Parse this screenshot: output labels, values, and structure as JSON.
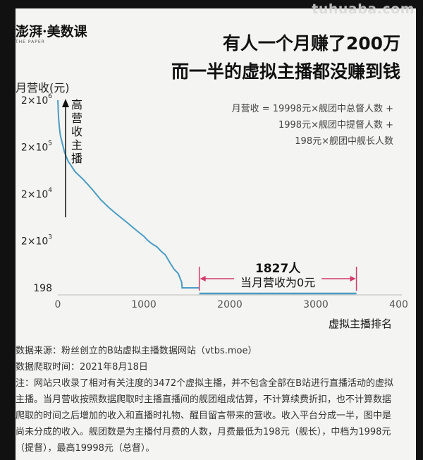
{
  "watermark": "tuhuaba.com",
  "brand": {
    "name": "澎湃·美数课",
    "sub": "THE PAPER"
  },
  "title": {
    "line1": "有人一个月赚了200万",
    "line2": "而一半的虚拟主播都没赚到钱"
  },
  "chart_data": {
    "type": "line",
    "ylabel": "月营收(元)",
    "xlabel": "虚拟主播排名",
    "y_scale": "log",
    "y_ticks": [
      {
        "value": 198,
        "label": "198"
      },
      {
        "value": 2000,
        "label": "2×10",
        "exp": "3"
      },
      {
        "value": 20000,
        "label": "2×10",
        "exp": "4"
      },
      {
        "value": 200000,
        "label": "2×10",
        "exp": "5"
      },
      {
        "value": 2000000,
        "label": "2×10",
        "exp": "6"
      }
    ],
    "x_ticks": [
      0,
      1000,
      2000,
      3000,
      4000
    ],
    "xlim": [
      0,
      4000
    ],
    "ylim": [
      150,
      2300000
    ],
    "line_color": "#4a9cc4",
    "series": [
      {
        "name": "",
        "points": [
          [
            1,
            2000000
          ],
          [
            5,
            1200000
          ],
          [
            10,
            800000
          ],
          [
            20,
            500000
          ],
          [
            30,
            350000
          ],
          [
            50,
            250000
          ],
          [
            80,
            150000
          ],
          [
            120,
            100000
          ],
          [
            200,
            60000
          ],
          [
            300,
            40000
          ],
          [
            400,
            25000
          ],
          [
            500,
            15000
          ],
          [
            600,
            10000
          ],
          [
            700,
            7000
          ],
          [
            800,
            5000
          ],
          [
            900,
            3500
          ],
          [
            1000,
            2500
          ],
          [
            1050,
            2000
          ],
          [
            1100,
            1700
          ],
          [
            1150,
            1500
          ],
          [
            1200,
            1200
          ],
          [
            1250,
            1000
          ],
          [
            1300,
            700
          ],
          [
            1350,
            500
          ],
          [
            1400,
            400
          ],
          [
            1440,
            260
          ],
          [
            1445,
            198
          ],
          [
            1645,
            198
          ]
        ]
      },
      {
        "name": "",
        "points": [
          [
            1645,
            150
          ],
          [
            3472,
            150
          ]
        ]
      }
    ],
    "annotations": {
      "high_revenue_arrow": "高营收主播",
      "formula": [
        "月营收 = 19998元×舰团中总督人数 +",
        "1998元×舰团中提督人数 +",
        "198元×舰团中舰长人数"
      ],
      "zero_count": "1827人",
      "zero_text": "当月营收为0元",
      "zero_range": [
        1645,
        3472
      ]
    }
  },
  "footnote": {
    "source": "数据来源：粉丝创立的B站虚拟主播数据网站（vtbs.moe）",
    "date": "数据爬取时间：2021年8月18日",
    "note": "注：网站只收录了相对有关注度的3472个虚拟主播，并不包含全部在B站进行直播活动的虚拟主播。当月营收按照数据爬取时主播直播间的舰团组成估算，不计算续费折扣，也不计算数据爬取的时间之后增加的收入和直播时礼物、醒目留言带来的营收。收入平台分成一半，图中是尚未分成的收入。舰团数是为主播付月费的人数，月费最低为198元（舰长），中档为1998元（提督），最高19998元（总督）。"
  }
}
